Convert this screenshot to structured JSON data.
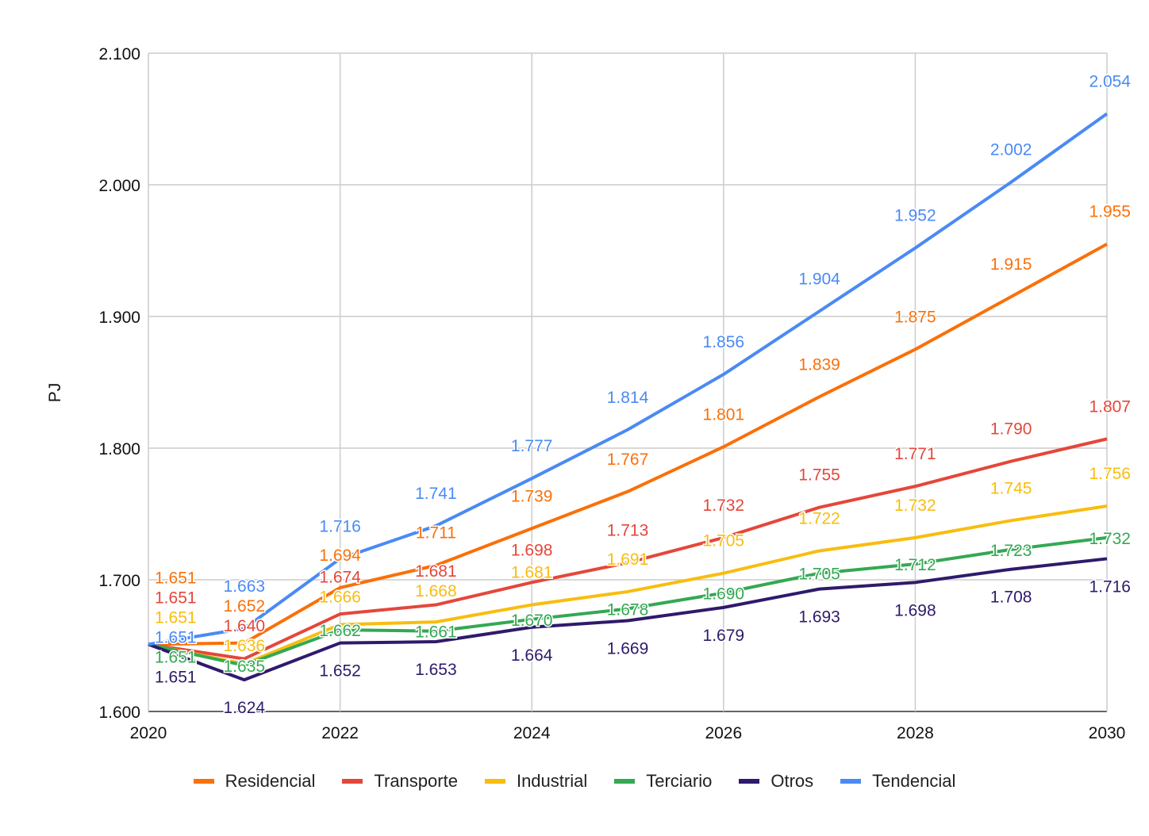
{
  "chart_data": {
    "type": "line",
    "title": "",
    "xlabel": "",
    "ylabel": "PJ",
    "x": [
      2020,
      2021,
      2022,
      2023,
      2024,
      2025,
      2026,
      2027,
      2028,
      2029,
      2030
    ],
    "xticks": [
      "2020",
      "2022",
      "2024",
      "2026",
      "2028",
      "2030"
    ],
    "yticks": [
      "1.600",
      "1.700",
      "1.800",
      "1.900",
      "2.000",
      "2.100"
    ],
    "ylim": [
      1600,
      2100
    ],
    "grid": true,
    "legend_position": "bottom",
    "series": [
      {
        "name": "Residencial",
        "color": "#fa7009",
        "values": [
          1651,
          1652,
          1694,
          1711,
          1739,
          1767,
          1801,
          1839,
          1875,
          1915,
          1955
        ]
      },
      {
        "name": "Transporte",
        "color": "#e4473a",
        "values": [
          1651,
          1640,
          1674,
          1681,
          1698,
          1713,
          1732,
          1755,
          1771,
          1790,
          1807
        ]
      },
      {
        "name": "Industrial",
        "color": "#f8bd0f",
        "values": [
          1651,
          1636,
          1666,
          1668,
          1681,
          1691,
          1705,
          1722,
          1732,
          1745,
          1756
        ]
      },
      {
        "name": "Terciario",
        "color": "#34a853",
        "values": [
          1651,
          1635,
          1662,
          1661,
          1670,
          1678,
          1690,
          1705,
          1712,
          1723,
          1732
        ]
      },
      {
        "name": "Otros",
        "color": "#2f1a6b",
        "values": [
          1651,
          1624,
          1652,
          1653,
          1664,
          1669,
          1679,
          1693,
          1698,
          1708,
          1716
        ]
      },
      {
        "name": "Tendencial",
        "color": "#4a8af4",
        "values": [
          1651,
          1663,
          1716,
          1741,
          1777,
          1814,
          1856,
          1904,
          1952,
          2002,
          2054
        ]
      }
    ]
  }
}
